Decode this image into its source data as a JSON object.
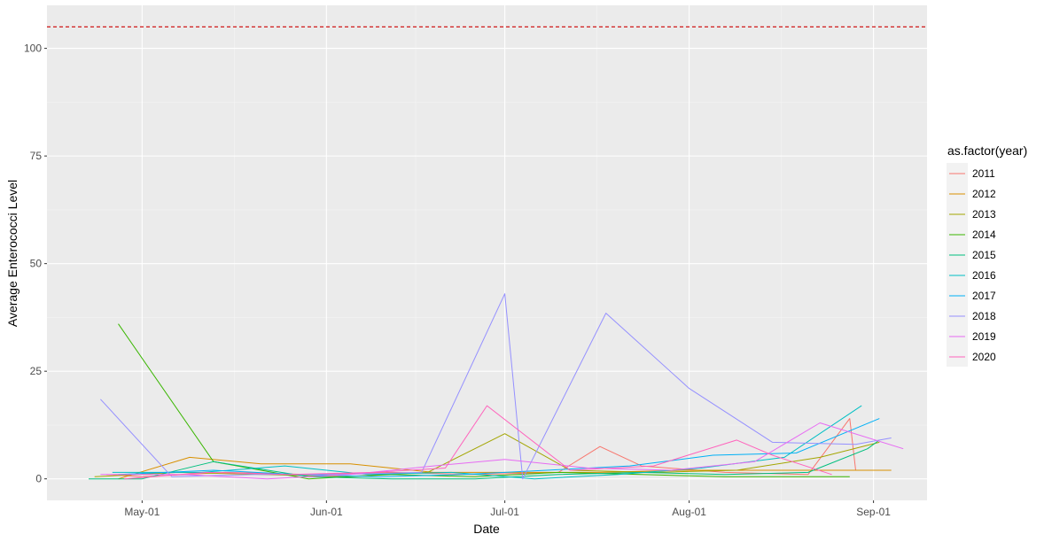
{
  "chart_data": {
    "type": "line",
    "title": "",
    "xlabel": "Date",
    "ylabel": "Average Enterococci Level",
    "x_ticks": [
      "May-01",
      "Jun-01",
      "Jul-01",
      "Aug-01",
      "Sep-01"
    ],
    "x_tick_days": [
      0,
      31,
      61,
      92,
      123
    ],
    "y_ticks": [
      0,
      25,
      50,
      75,
      100
    ],
    "xlim_days": [
      -16,
      132
    ],
    "ylim": [
      -5,
      110
    ],
    "reference_line": {
      "y": 105,
      "color": "#cc0000",
      "style": "dashed"
    },
    "grid": true,
    "legend": {
      "title": "as.factor(year)",
      "position": "right"
    },
    "series": [
      {
        "name": "2011",
        "color": "#F8766D",
        "points": [
          [
            -6,
            1
          ],
          [
            0,
            0.5
          ],
          [
            14,
            1.5
          ],
          [
            28,
            1
          ],
          [
            42,
            1.5
          ],
          [
            56,
            1
          ],
          [
            70,
            1.5
          ],
          [
            77,
            7.5
          ],
          [
            84,
            3
          ],
          [
            98,
            1.5
          ],
          [
            112,
            1
          ],
          [
            119,
            14
          ],
          [
            120,
            2
          ]
        ]
      },
      {
        "name": "2012",
        "color": "#D89000",
        "points": [
          [
            -4,
            0
          ],
          [
            8,
            5
          ],
          [
            20,
            3.5
          ],
          [
            35,
            3.5
          ],
          [
            49,
            1.5
          ],
          [
            63,
            1.5
          ],
          [
            77,
            1.5
          ],
          [
            91,
            2
          ],
          [
            105,
            2
          ],
          [
            119,
            2
          ],
          [
            126,
            2
          ]
        ]
      },
      {
        "name": "2013",
        "color": "#A3A500",
        "points": [
          [
            -8,
            0.5
          ],
          [
            6,
            1.5
          ],
          [
            20,
            1
          ],
          [
            34,
            0.5
          ],
          [
            48,
            1.5
          ],
          [
            61,
            10.5
          ],
          [
            72,
            2
          ],
          [
            86,
            1.5
          ],
          [
            100,
            2
          ],
          [
            114,
            5
          ],
          [
            124,
            8.5
          ]
        ]
      },
      {
        "name": "2014",
        "color": "#39B600",
        "points": [
          [
            -4,
            36
          ],
          [
            12,
            4
          ],
          [
            28,
            0
          ],
          [
            42,
            1
          ],
          [
            56,
            0.5
          ],
          [
            70,
            1.5
          ],
          [
            84,
            1
          ],
          [
            98,
            0.5
          ],
          [
            112,
            0.5
          ],
          [
            119,
            0.5
          ]
        ]
      },
      {
        "name": "2015",
        "color": "#00BF7D",
        "points": [
          [
            -9,
            0
          ],
          [
            0,
            0
          ],
          [
            12,
            4
          ],
          [
            28,
            0.5
          ],
          [
            42,
            0
          ],
          [
            56,
            0
          ],
          [
            70,
            1
          ],
          [
            84,
            1.5
          ],
          [
            98,
            1
          ],
          [
            112,
            1.5
          ],
          [
            122,
            7
          ],
          [
            124,
            9
          ]
        ]
      },
      {
        "name": "2016",
        "color": "#00BFC4",
        "points": [
          [
            -5,
            1.5
          ],
          [
            10,
            1.5
          ],
          [
            24,
            3
          ],
          [
            38,
            1
          ],
          [
            52,
            1.5
          ],
          [
            66,
            0
          ],
          [
            80,
            1
          ],
          [
            94,
            2.5
          ],
          [
            108,
            5
          ],
          [
            121,
            17
          ]
        ]
      },
      {
        "name": "2017",
        "color": "#00B0F6",
        "points": [
          [
            -4,
            1
          ],
          [
            12,
            2
          ],
          [
            26,
            1
          ],
          [
            40,
            0.5
          ],
          [
            54,
            1
          ],
          [
            68,
            2
          ],
          [
            82,
            3
          ],
          [
            96,
            5.5
          ],
          [
            110,
            6
          ],
          [
            124,
            14
          ]
        ]
      },
      {
        "name": "2018",
        "color": "#9590FF",
        "points": [
          [
            -7,
            18.5
          ],
          [
            5,
            0.5
          ],
          [
            19,
            1
          ],
          [
            33,
            1
          ],
          [
            47,
            1.5
          ],
          [
            61,
            43
          ],
          [
            64,
            0
          ],
          [
            78,
            38.5
          ],
          [
            92,
            21
          ],
          [
            106,
            8.5
          ],
          [
            120,
            8
          ],
          [
            126,
            9.5
          ]
        ]
      },
      {
        "name": "2019",
        "color": "#E76BF3",
        "points": [
          [
            -7,
            1
          ],
          [
            7,
            1
          ],
          [
            21,
            0
          ],
          [
            35,
            1
          ],
          [
            49,
            3
          ],
          [
            61,
            4.5
          ],
          [
            75,
            2.5
          ],
          [
            89,
            2
          ],
          [
            103,
            4
          ],
          [
            114,
            13
          ],
          [
            128,
            7
          ]
        ]
      },
      {
        "name": "2020",
        "color": "#FF62BC",
        "points": [
          [
            -3,
            0
          ],
          [
            11,
            1.5
          ],
          [
            25,
            1
          ],
          [
            39,
            1.5
          ],
          [
            51,
            2.5
          ],
          [
            58,
            17
          ],
          [
            72,
            2
          ],
          [
            86,
            3
          ],
          [
            100,
            9
          ],
          [
            106,
            5.5
          ],
          [
            116,
            1
          ]
        ]
      }
    ]
  }
}
